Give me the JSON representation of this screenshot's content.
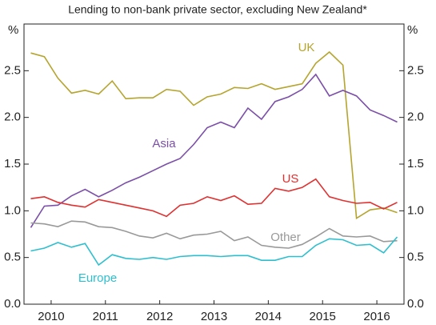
{
  "chart_data": {
    "type": "line",
    "subtitle": "Lending to non-bank private sector, excluding New Zealand*",
    "y_label": "%",
    "y2_label": "%",
    "xlim": [
      2010,
      2017
    ],
    "xticks": [
      {
        "value": 2010.5,
        "label": "2010"
      },
      {
        "value": 2011.5,
        "label": "2011"
      },
      {
        "value": 2012.5,
        "label": "2012"
      },
      {
        "value": 2013.5,
        "label": "2013"
      },
      {
        "value": 2014.5,
        "label": "2014"
      },
      {
        "value": 2015.5,
        "label": "2015"
      },
      {
        "value": 2016.5,
        "label": "2016"
      }
    ],
    "ylim": [
      0,
      3
    ],
    "yticks": [
      {
        "value": 0,
        "label": "0.0"
      },
      0.5,
      {
        "value": 1,
        "label": "1.0"
      },
      1.5,
      {
        "value": 2,
        "label": "2.0"
      },
      2.5
    ],
    "x": [
      2010.125,
      2010.375,
      2010.625,
      2010.875,
      2011.125,
      2011.375,
      2011.625,
      2011.875,
      2012.125,
      2012.375,
      2012.625,
      2012.875,
      2013.125,
      2013.375,
      2013.625,
      2013.875,
      2014.125,
      2014.375,
      2014.625,
      2014.875,
      2015.125,
      2015.375,
      2015.625,
      2015.875,
      2016.125,
      2016.375,
      2016.625,
      2016.875
    ],
    "series": [
      {
        "name": "UK",
        "color": "#b5a42e",
        "values": [
          2.69,
          2.65,
          2.42,
          2.26,
          2.29,
          2.25,
          2.39,
          2.2,
          2.21,
          2.21,
          2.3,
          2.28,
          2.13,
          2.22,
          2.25,
          2.32,
          2.31,
          2.36,
          2.3,
          2.33,
          2.36,
          2.58,
          2.7,
          2.56,
          0.92,
          1.01,
          1.03,
          0.98
        ]
      },
      {
        "name": "Asia",
        "color": "#7b4fa8",
        "values": [
          0.82,
          1.05,
          1.06,
          1.16,
          1.23,
          1.15,
          1.22,
          1.3,
          1.36,
          1.43,
          1.5,
          1.56,
          1.71,
          1.89,
          1.95,
          1.89,
          2.1,
          1.98,
          2.17,
          2.22,
          2.3,
          2.46,
          2.23,
          2.29,
          2.23,
          2.08,
          2.02,
          1.95
        ]
      },
      {
        "name": "US",
        "color": "#e03030",
        "values": [
          1.13,
          1.15,
          1.09,
          1.06,
          1.04,
          1.12,
          1.09,
          1.06,
          1.03,
          1.0,
          0.94,
          1.06,
          1.08,
          1.15,
          1.11,
          1.16,
          1.07,
          1.08,
          1.24,
          1.21,
          1.25,
          1.34,
          1.15,
          1.11,
          1.08,
          1.09,
          1.02,
          1.09
        ]
      },
      {
        "name": "Other",
        "color": "#999999",
        "values": [
          0.87,
          0.86,
          0.83,
          0.89,
          0.88,
          0.83,
          0.82,
          0.78,
          0.73,
          0.71,
          0.76,
          0.7,
          0.74,
          0.75,
          0.78,
          0.68,
          0.72,
          0.63,
          0.61,
          0.6,
          0.64,
          0.72,
          0.81,
          0.73,
          0.72,
          0.73,
          0.67,
          0.68
        ]
      },
      {
        "name": "Europe",
        "color": "#2ebfcf",
        "values": [
          0.57,
          0.6,
          0.66,
          0.61,
          0.65,
          0.42,
          0.53,
          0.49,
          0.48,
          0.5,
          0.48,
          0.51,
          0.52,
          0.52,
          0.51,
          0.52,
          0.52,
          0.47,
          0.47,
          0.51,
          0.51,
          0.63,
          0.7,
          0.69,
          0.63,
          0.64,
          0.55,
          0.72
        ]
      }
    ]
  }
}
